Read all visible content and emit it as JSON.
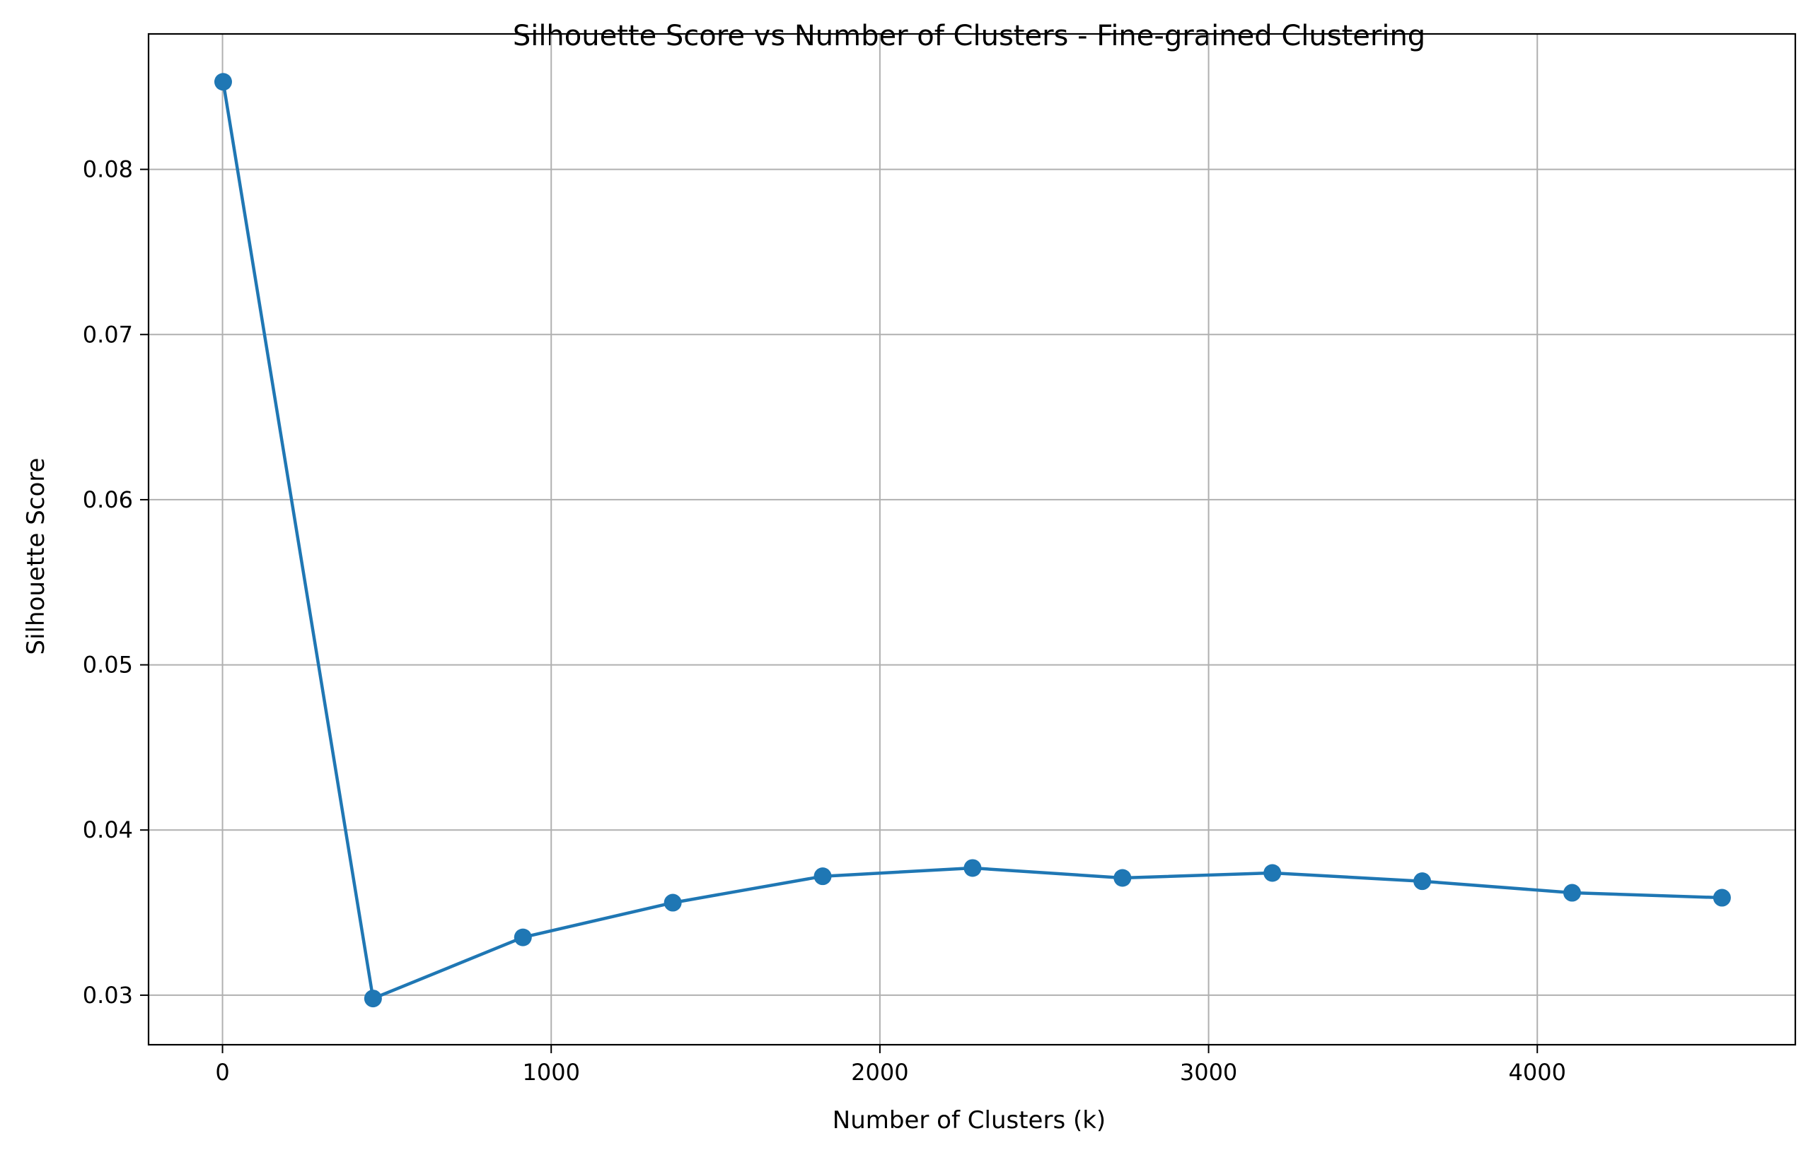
{
  "chart_data": {
    "type": "line",
    "title": "Silhouette Score vs Number of Clusters - Fine-grained Clustering",
    "xlabel": "Number of Clusters (k)",
    "ylabel": "Silhouette Score",
    "xlim": [
      -225,
      4785
    ],
    "ylim": [
      0.027,
      0.0882
    ],
    "xticks": [
      0,
      1000,
      2000,
      3000,
      4000
    ],
    "xtick_labels": [
      "0",
      "1000",
      "2000",
      "3000",
      "4000"
    ],
    "yticks": [
      0.03,
      0.04,
      0.05,
      0.06,
      0.07,
      0.08
    ],
    "ytick_labels": [
      "0.03",
      "0.04",
      "0.05",
      "0.06",
      "0.07",
      "0.08"
    ],
    "grid": true,
    "color": "#1f77b4",
    "marker": "circle",
    "series": [
      {
        "x": [
          2,
          458,
          914,
          1370,
          1826,
          2282,
          2738,
          3194,
          3650,
          4106,
          4562
        ],
        "y": [
          0.0853,
          0.0298,
          0.0335,
          0.0356,
          0.0372,
          0.0377,
          0.0371,
          0.0374,
          0.0369,
          0.0362,
          0.0359
        ]
      }
    ]
  }
}
